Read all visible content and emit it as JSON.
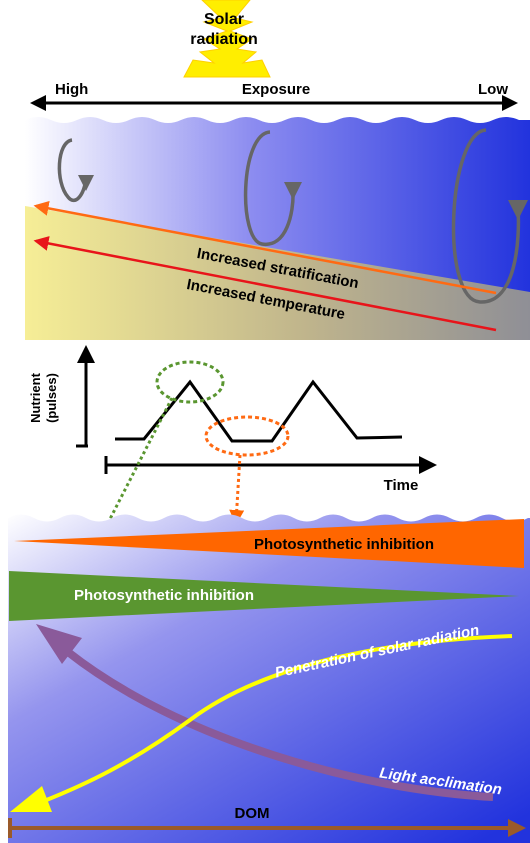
{
  "sun": {
    "line1": "Solar",
    "line2": "radiation"
  },
  "exposure": {
    "high": "High",
    "label": "Exposure",
    "low": "Low"
  },
  "upper_panel": {
    "stratification": "Increased stratification",
    "temperature": "Increased temperature"
  },
  "nutrient_chart": {
    "ylabel_line1": "Nutrient",
    "ylabel_line2": "(pulses)",
    "xlabel": "Time"
  },
  "lower_panel": {
    "inhibition_orange": "Photosynthetic inhibition",
    "inhibition_green": "Photosynthetic inhibition",
    "penetration": "Penetration of solar radiation",
    "acclimation": "Light acclimation",
    "dom": "DOM"
  },
  "colors": {
    "sun": "#ffee00",
    "ocean_light": "#ffffff",
    "ocean_dark": "#2233dd",
    "stratification_arrow": "#ff6a13",
    "temperature_arrow": "#e8141a",
    "orange_wedge": "#ff6600",
    "green_wedge": "#5a9630",
    "penetration_curve": "#ffff00",
    "acclimation_curve": "#8a5a9a",
    "dom_arrow": "#9a5a2a",
    "circulation_icon": "#666666"
  }
}
